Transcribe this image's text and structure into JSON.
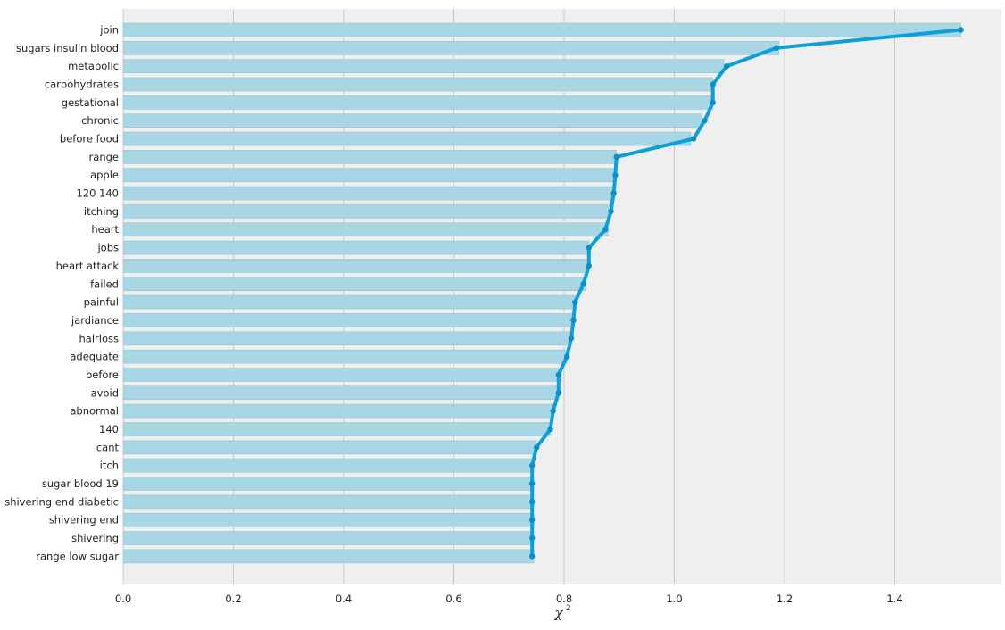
{
  "chart_data": {
    "type": "bar",
    "orientation": "horizontal",
    "categories": [
      "join",
      "sugars insulin blood",
      "metabolic",
      "carbohydrates",
      "gestational",
      "chronic",
      "before food",
      "range",
      "apple",
      "120 140",
      "itching",
      "heart",
      "jobs",
      "heart attack",
      "failed",
      "painful",
      "jardiance",
      "hairloss",
      "adequate",
      "before",
      "avoid",
      "abnormal",
      "140",
      "cant",
      "itch",
      "sugar blood 19",
      "shivering end diabetic",
      "shivering end",
      "shivering",
      "range low sugar"
    ],
    "bar_values": [
      1.52,
      1.19,
      1.09,
      1.07,
      1.07,
      1.05,
      1.03,
      0.895,
      0.895,
      0.89,
      0.885,
      0.88,
      0.845,
      0.845,
      0.84,
      0.82,
      0.815,
      0.81,
      0.805,
      0.795,
      0.79,
      0.78,
      0.775,
      0.75,
      0.745,
      0.745,
      0.745,
      0.745,
      0.745,
      0.745
    ],
    "line_values": [
      1.52,
      1.185,
      1.095,
      1.07,
      1.07,
      1.055,
      1.035,
      0.895,
      0.893,
      0.89,
      0.885,
      0.875,
      0.845,
      0.845,
      0.835,
      0.82,
      0.817,
      0.813,
      0.805,
      0.79,
      0.79,
      0.78,
      0.775,
      0.75,
      0.742,
      0.742,
      0.742,
      0.742,
      0.742,
      0.742
    ],
    "x_ticks": [
      0.0,
      0.2,
      0.4,
      0.6,
      0.8,
      1.0,
      1.2,
      1.4
    ],
    "x_tick_labels": [
      "0.0",
      "0.2",
      "0.4",
      "0.6",
      "0.8",
      "1.0",
      "1.2",
      "1.4"
    ],
    "xlim": [
      0.0,
      1.6
    ],
    "xlabel": "χ",
    "xlabel_superscript": "2",
    "title": "",
    "ylabel": "",
    "grid": true,
    "legend": "none",
    "colors": {
      "background": "#efefef",
      "grid": "#c8c8c8",
      "bar_fill": "#a9d6e5",
      "bar_edge": "#8ac6dc",
      "line": "#0aa0d8",
      "marker": "#0a90c8",
      "text": "#222222"
    }
  }
}
